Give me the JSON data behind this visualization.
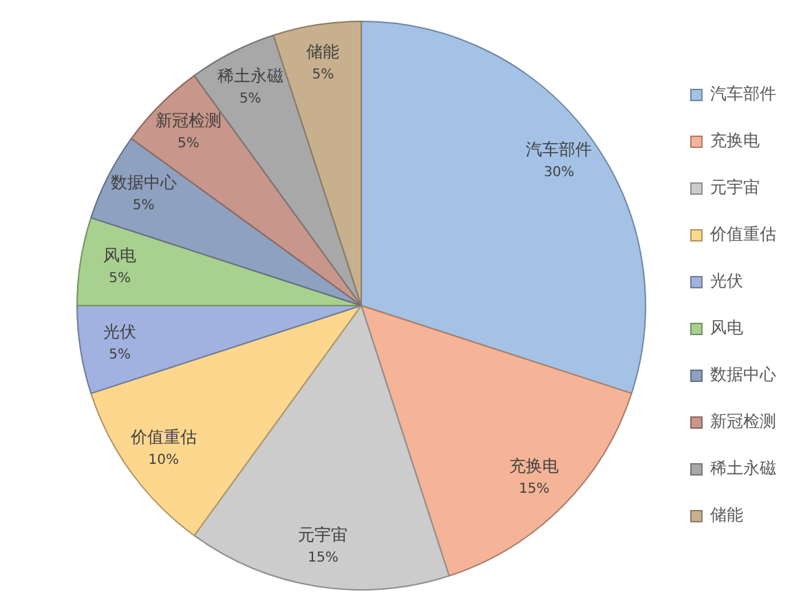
{
  "chart_data": {
    "type": "pie",
    "categories": [
      "汽车部件",
      "充换电",
      "元宇宙",
      "价值重估",
      "光伏",
      "风电",
      "数据中心",
      "新冠检测",
      "稀土永磁",
      "储能"
    ],
    "values": [
      30,
      15,
      15,
      10,
      5,
      5,
      5,
      5,
      5,
      5
    ],
    "colors": [
      "#a3c2e6",
      "#f5b497",
      "#cccccc",
      "#fed78f",
      "#a1b2e0",
      "#a8d08f",
      "#8fa1c0",
      "#c8968a",
      "#a8a8a8",
      "#c8b08f"
    ],
    "value_labels": [
      "30%",
      "15%",
      "15%",
      "10%",
      "5%",
      "5%",
      "5%",
      "5%",
      "5%",
      "5%"
    ],
    "legend": "right"
  }
}
